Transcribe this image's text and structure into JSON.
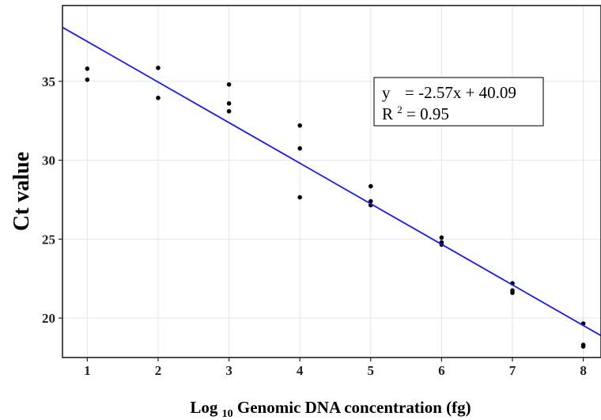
{
  "chart_data": {
    "type": "scatter",
    "title": "",
    "xlabel_main": "Log",
    "xlabel_sub": "10",
    "xlabel_rest": " Genomic DNA concentration (fg)",
    "ylabel": "Ct value",
    "xlim": [
      0.65,
      8.25
    ],
    "ylim": [
      17.5,
      39.8
    ],
    "x_ticks": [
      1,
      2,
      3,
      4,
      5,
      6,
      7,
      8
    ],
    "y_ticks": [
      20,
      25,
      30,
      35
    ],
    "grid": true,
    "points": [
      {
        "x": 1,
        "y": 35.8
      },
      {
        "x": 1,
        "y": 35.1
      },
      {
        "x": 2,
        "y": 35.85
      },
      {
        "x": 2,
        "y": 33.95
      },
      {
        "x": 3,
        "y": 34.8
      },
      {
        "x": 3,
        "y": 33.6
      },
      {
        "x": 3,
        "y": 33.1
      },
      {
        "x": 4,
        "y": 32.2
      },
      {
        "x": 4,
        "y": 30.75
      },
      {
        "x": 4,
        "y": 27.65
      },
      {
        "x": 5,
        "y": 28.35
      },
      {
        "x": 5,
        "y": 27.4
      },
      {
        "x": 5,
        "y": 27.15
      },
      {
        "x": 6,
        "y": 25.1
      },
      {
        "x": 6,
        "y": 24.8
      },
      {
        "x": 6,
        "y": 24.65
      },
      {
        "x": 7,
        "y": 22.2
      },
      {
        "x": 7,
        "y": 21.75
      },
      {
        "x": 7,
        "y": 21.6
      },
      {
        "x": 8,
        "y": 19.65
      },
      {
        "x": 8,
        "y": 18.3
      },
      {
        "x": 8,
        "y": 18.2
      }
    ],
    "fit": {
      "slope": -2.57,
      "intercept": 40.09,
      "color": "#1a1aee"
    },
    "equation_line1_y": "y",
    "equation_line1_rest": "= -2.57x + 40.09",
    "equation_line2_r": "R",
    "equation_line2_sup": "2",
    "equation_line2_rest": " = 0.95",
    "legend_position": "top-right",
    "point_color": "#000000",
    "grid_color": "#e6e6e6"
  }
}
